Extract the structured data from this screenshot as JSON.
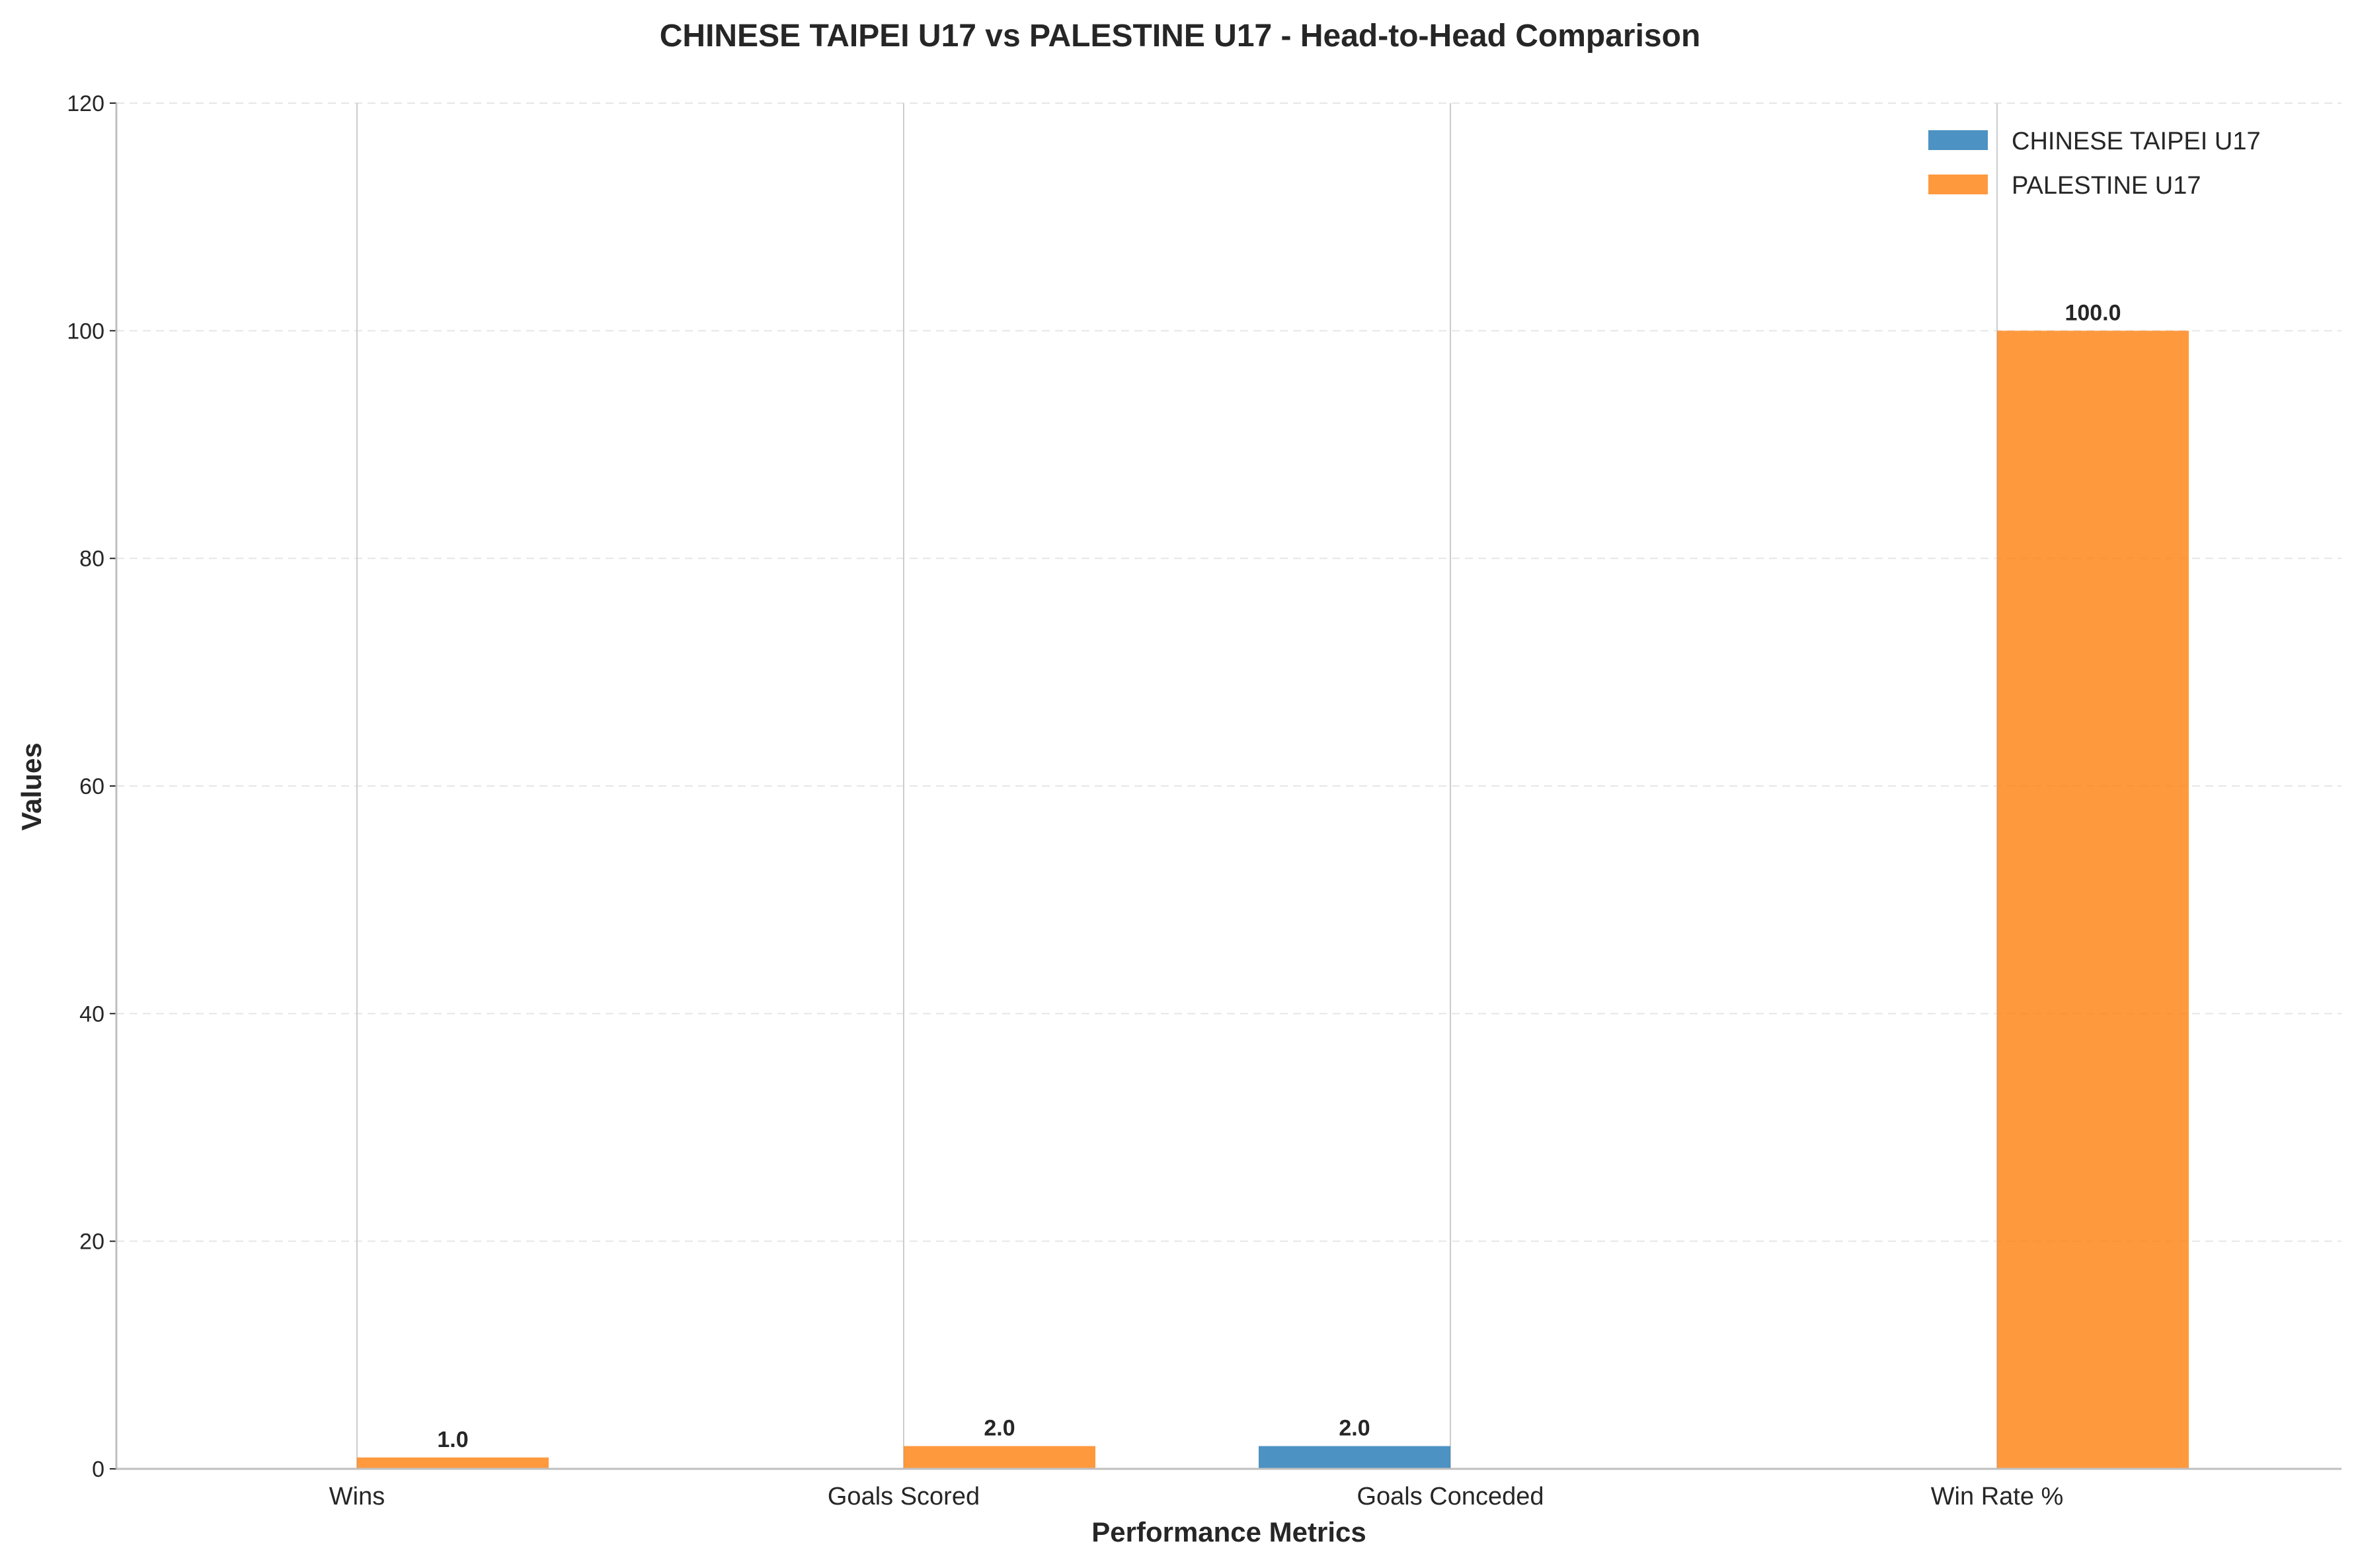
{
  "chart_data": {
    "type": "bar",
    "title": "CHINESE TAIPEI U17 vs PALESTINE U17 - Head-to-Head Comparison",
    "xlabel": "Performance Metrics",
    "ylabel": "Values",
    "categories": [
      "Wins",
      "Goals Scored",
      "Goals Conceded",
      "Win Rate %"
    ],
    "ylim": [
      0,
      120
    ],
    "yticks": [
      0,
      20,
      40,
      60,
      80,
      100,
      120
    ],
    "grid": true,
    "legend_position": "top-right",
    "series": [
      {
        "name": "CHINESE TAIPEI U17",
        "color": "#1f77b4",
        "values": [
          0,
          0,
          2,
          0
        ],
        "labels": [
          "",
          "",
          "2.0",
          ""
        ]
      },
      {
        "name": "PALESTINE U17",
        "color": "#ff7f0e",
        "values": [
          1,
          2,
          0,
          100
        ],
        "labels": [
          "1.0",
          "2.0",
          "",
          "100.0"
        ]
      }
    ]
  }
}
